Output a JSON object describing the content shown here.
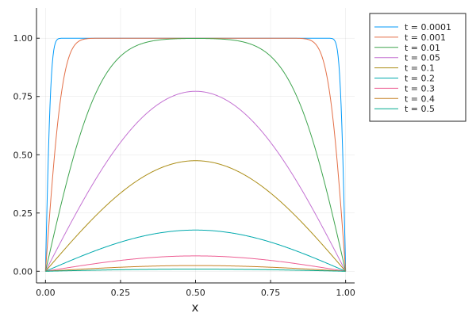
{
  "chart_data": {
    "type": "line",
    "title": "",
    "xlabel": "x",
    "ylabel": "",
    "xlim": [
      -0.03,
      1.03
    ],
    "ylim": [
      -0.05,
      1.13
    ],
    "x_ticks": [
      0.0,
      0.25,
      0.5,
      0.75,
      1.0
    ],
    "x_tick_labels": [
      "0.00",
      "0.25",
      "0.50",
      "0.75",
      "1.00"
    ],
    "y_ticks": [
      0.0,
      0.25,
      0.5,
      0.75,
      1.0
    ],
    "y_tick_labels": [
      "0.00",
      "0.25",
      "0.50",
      "0.75",
      "1.00"
    ],
    "grid": true,
    "legend_position": "outer-top-right",
    "series": [
      {
        "name": "t = 0.0001",
        "t": 0.0001,
        "color": "#009AFA"
      },
      {
        "name": "t = 0.001",
        "t": 0.001,
        "color": "#E36F47"
      },
      {
        "name": "t = 0.01",
        "t": 0.01,
        "color": "#3EA44E"
      },
      {
        "name": "t = 0.05",
        "t": 0.05,
        "color": "#C371D2"
      },
      {
        "name": "t = 0.1",
        "t": 0.1,
        "color": "#AC8E18"
      },
      {
        "name": "t = 0.2",
        "t": 0.2,
        "color": "#00A9AD"
      },
      {
        "name": "t = 0.3",
        "t": 0.3,
        "color": "#ED5E93"
      },
      {
        "name": "t = 0.4",
        "t": 0.4,
        "color": "#C68125"
      },
      {
        "name": "t = 0.5",
        "t": 0.5,
        "color": "#00A98D"
      }
    ]
  }
}
